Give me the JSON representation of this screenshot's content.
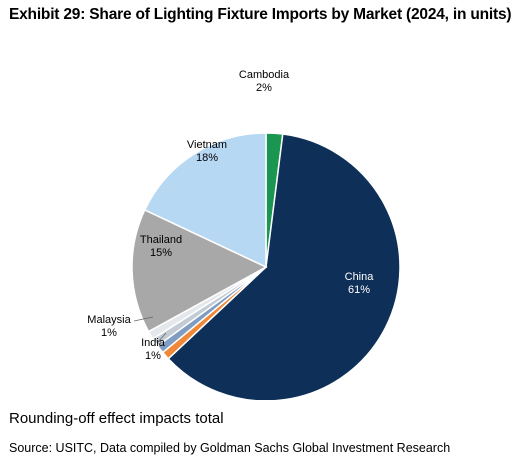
{
  "title": "Exhibit 29: Share of Lighting Fixture Imports by Market (2024, in units)",
  "note": "Rounding-off effect impacts total",
  "source": "Source: USITC, Data compiled by Goldman Sachs Global Investment Research",
  "chart_data": {
    "type": "pie",
    "slices": [
      {
        "name": "Cambodia",
        "label": "2%",
        "value": 2,
        "color": "#1a9650"
      },
      {
        "name": "China",
        "label": "61%",
        "value": 61,
        "color": "#0e2f57"
      },
      {
        "name": "India",
        "label": "1%",
        "value": 1,
        "color": "#f0883a"
      },
      {
        "name": "",
        "label": "",
        "value": 1,
        "color": "#7f9cc3"
      },
      {
        "name": "Malaysia",
        "label": "1%",
        "value": 1,
        "color": "#c3cbd4"
      },
      {
        "name": "",
        "label": "",
        "value": 1,
        "color": "#e4e8ec"
      },
      {
        "name": "Thailand",
        "label": "15%",
        "value": 15,
        "color": "#a8a8a8"
      },
      {
        "name": "Vietnam",
        "label": "18%",
        "value": 18,
        "color": "#b7d8f3"
      }
    ]
  }
}
